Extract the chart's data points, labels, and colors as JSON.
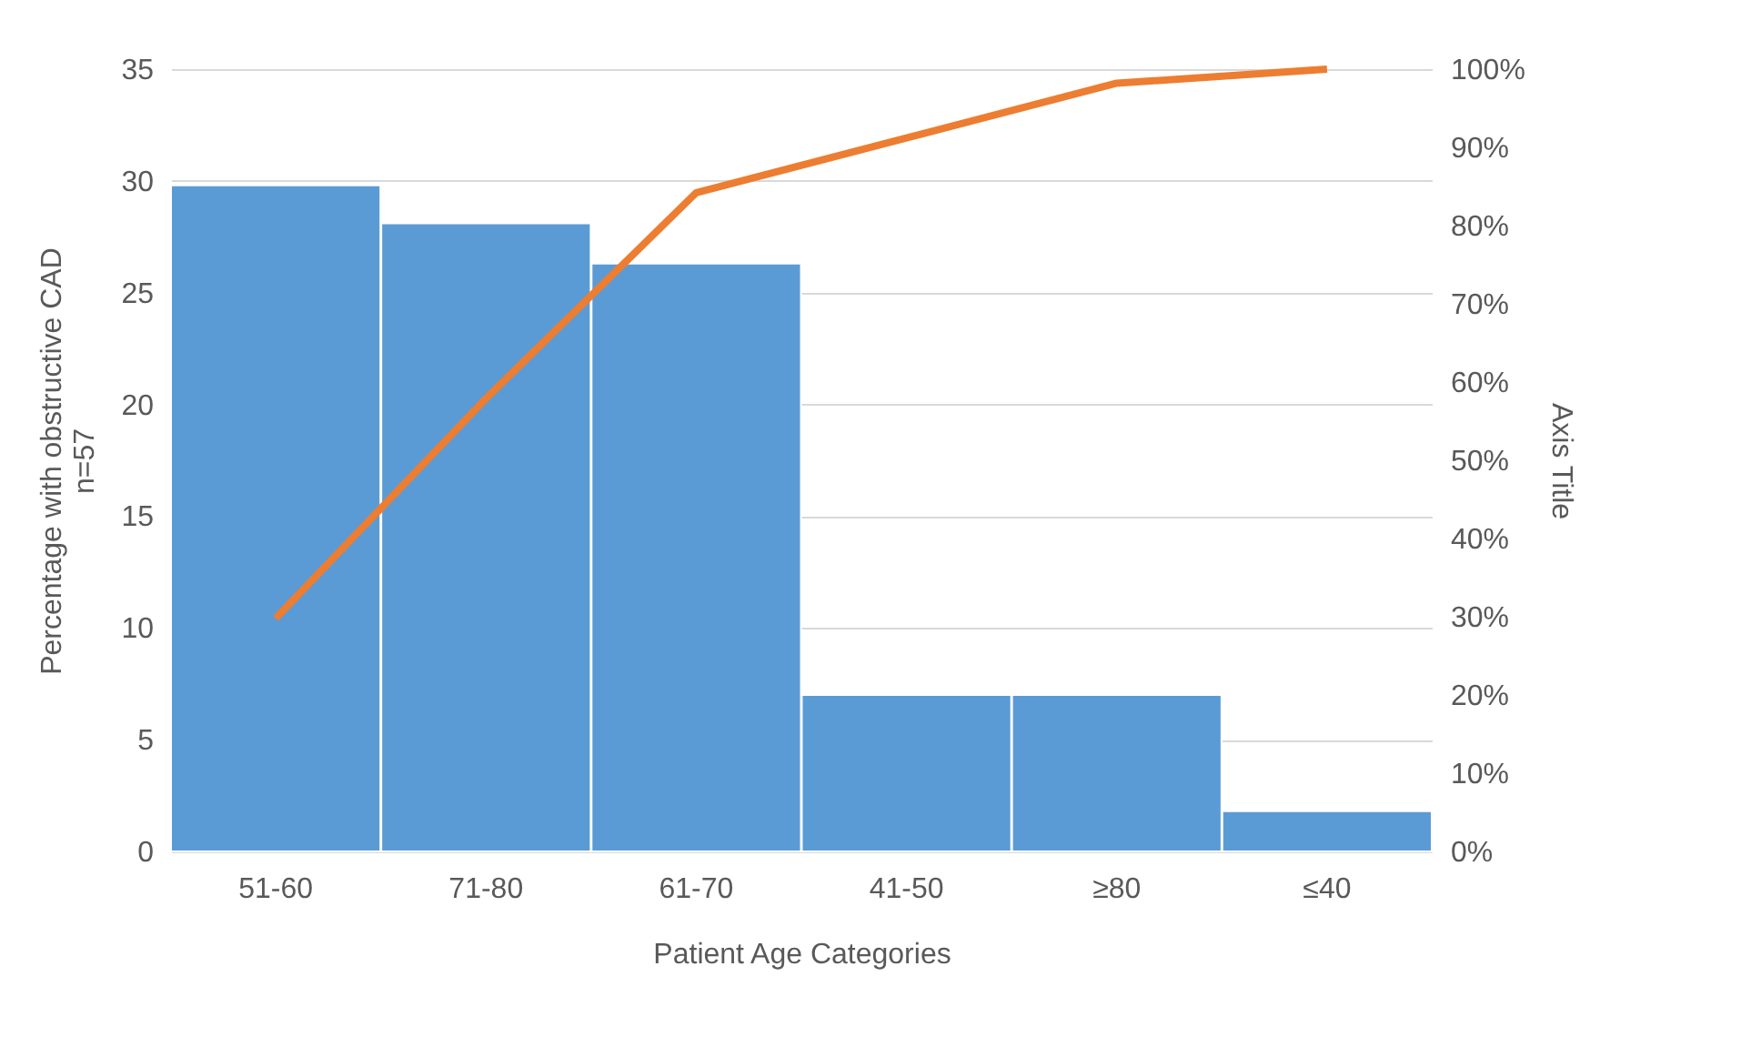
{
  "chart_data": {
    "type": "bar",
    "xlabel": "Patient Age Categories",
    "ylabel": "Percentage with obstructive CAD\nn=57",
    "y2label": "Axis Title",
    "categories": [
      "51-60",
      "71-80",
      "61-70",
      "41-50",
      "≥80",
      "≤40"
    ],
    "series": [
      {
        "color": "#5b9bd5",
        "values": [
          29.8,
          28.1,
          26.3,
          7.0,
          7.0,
          1.8
        ]
      },
      {
        "type": "line",
        "axis": "y2",
        "color": "#ed7d31",
        "values": [
          29.8,
          57.9,
          84.2,
          91.2,
          98.2,
          100
        ]
      }
    ],
    "ylim": [
      0,
      35
    ],
    "yticks": [
      0,
      5,
      10,
      15,
      20,
      25,
      30,
      35
    ],
    "y2lim": [
      0,
      100
    ],
    "y2ticks": [
      {
        "value": 0,
        "label": "0%"
      },
      {
        "value": 10,
        "label": "10%"
      },
      {
        "value": 20,
        "label": "20%"
      },
      {
        "value": 30,
        "label": "30%"
      },
      {
        "value": 40,
        "label": "40%"
      },
      {
        "value": 50,
        "label": "50%"
      },
      {
        "value": 60,
        "label": "60%"
      },
      {
        "value": 70,
        "label": "70%"
      },
      {
        "value": 80,
        "label": "80%"
      },
      {
        "value": 90,
        "label": "90%"
      },
      {
        "value": 100,
        "label": "100%"
      }
    ],
    "grid": "y",
    "line_style": "solid",
    "marker": "none"
  }
}
